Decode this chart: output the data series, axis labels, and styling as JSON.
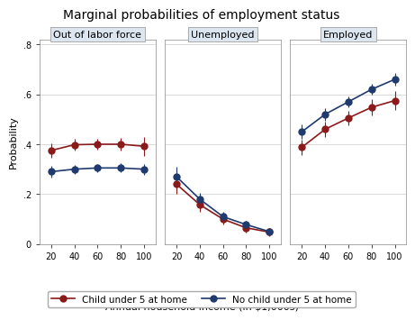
{
  "title": "Marginal probabilities of employment status",
  "xlabel": "Annual household income (in $1,000s)",
  "ylabel": "Probability",
  "x": [
    20,
    40,
    60,
    80,
    100
  ],
  "panels": [
    "Out of labor force",
    "Unemployed",
    "Employed"
  ],
  "panel_bg": "#dce6f0",
  "series": [
    {
      "label": "Child under 5 at home",
      "color": "#8b1a1a",
      "y": [
        [
          0.375,
          0.398,
          0.4,
          0.4,
          0.392
        ],
        [
          0.24,
          0.158,
          0.1,
          0.065,
          0.048
        ],
        [
          0.388,
          0.46,
          0.505,
          0.548,
          0.575
        ]
      ],
      "yerr": [
        [
          0.03,
          0.025,
          0.022,
          0.025,
          0.038
        ],
        [
          0.04,
          0.028,
          0.02,
          0.018,
          0.015
        ],
        [
          0.03,
          0.03,
          0.03,
          0.032,
          0.038
        ]
      ],
      "marker": "o",
      "markersize": 5
    },
    {
      "label": "No child under 5 at home",
      "color": "#1f3a6e",
      "y": [
        [
          0.29,
          0.3,
          0.305,
          0.305,
          0.3
        ],
        [
          0.27,
          0.18,
          0.11,
          0.078,
          0.05
        ],
        [
          0.45,
          0.52,
          0.57,
          0.62,
          0.66
        ]
      ],
      "yerr": [
        [
          0.022,
          0.018,
          0.016,
          0.018,
          0.022
        ],
        [
          0.04,
          0.025,
          0.018,
          0.015,
          0.012
        ],
        [
          0.03,
          0.025,
          0.022,
          0.022,
          0.025
        ]
      ],
      "marker": "o",
      "markersize": 5
    }
  ],
  "ylim": [
    0,
    0.82
  ],
  "yticks": [
    0,
    0.2,
    0.4,
    0.6,
    0.8
  ],
  "ytick_labels": [
    "0",
    ".2",
    ".4",
    ".6",
    ".8"
  ],
  "xticks": [
    20,
    40,
    60,
    80,
    100
  ],
  "background_color": "#ffffff",
  "grid_color": "#cccccc"
}
